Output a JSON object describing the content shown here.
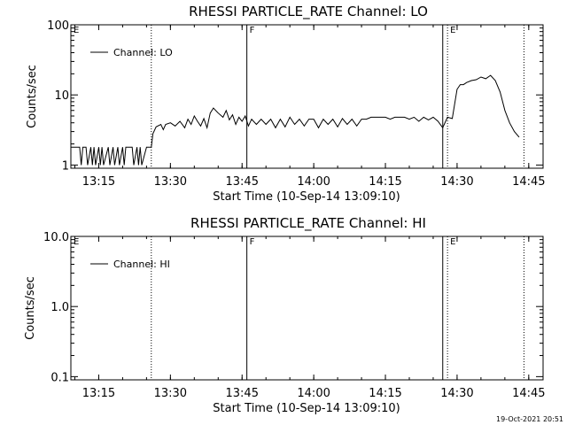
{
  "footer": {
    "timestamp": "19-Oct-2021 20:51"
  },
  "chart_data": [
    {
      "type": "line",
      "title": "RHESSI PARTICLE_RATE Channel: LO",
      "xlabel": "Start Time (10-Sep-14 13:09:10)",
      "ylabel": "Counts/sec",
      "yscale": "log",
      "ylim": [
        0.9,
        100
      ],
      "xlim": [
        "13:09:10",
        "14:48:00"
      ],
      "x_ticks": [
        "13:15",
        "13:30",
        "13:45",
        "14:00",
        "14:15",
        "14:30",
        "14:45"
      ],
      "y_ticks": [
        {
          "value": 1,
          "label": "1"
        },
        {
          "value": 10,
          "label": "10"
        },
        {
          "value": 100,
          "label": "100"
        }
      ],
      "legend": {
        "position": "top-left",
        "entries": [
          "Channel: LO"
        ]
      },
      "markers": [
        {
          "label": "E",
          "time": "13:09:10",
          "style": "solid"
        },
        {
          "label": "",
          "time": "13:26:00",
          "style": "dotted"
        },
        {
          "label": "F",
          "time": "13:46:00",
          "style": "solid"
        },
        {
          "label": "",
          "time": "14:27:00",
          "style": "solid"
        },
        {
          "label": "E",
          "time": "14:28:00",
          "style": "dotted"
        },
        {
          "label": "",
          "time": "14:44:00",
          "style": "dotted"
        }
      ],
      "series": [
        {
          "name": "Channel: LO",
          "x": [
            "13:09:10",
            "13:10:00",
            "13:11:00",
            "13:11:20",
            "13:11:40",
            "13:12:20",
            "13:12:40",
            "13:13:20",
            "13:13:40",
            "13:14:00",
            "13:14:20",
            "13:15:00",
            "13:15:20",
            "13:15:40",
            "13:16:00",
            "13:17:00",
            "13:17:20",
            "13:18:00",
            "13:18:20",
            "13:19:00",
            "13:19:20",
            "13:20:00",
            "13:20:20",
            "13:20:40",
            "13:21:00",
            "13:22:00",
            "13:22:20",
            "13:23:00",
            "13:23:20",
            "13:23:40",
            "13:24:00",
            "13:25:00",
            "13:25:20",
            "13:26:00",
            "13:26:20",
            "13:27:00",
            "13:28:00",
            "13:28:30",
            "13:29:00",
            "13:30:00",
            "13:31:00",
            "13:32:00",
            "13:33:00",
            "13:33:40",
            "13:34:20",
            "13:35:00",
            "13:35:40",
            "13:36:20",
            "13:37:00",
            "13:37:40",
            "13:38:20",
            "13:39:00",
            "13:40:00",
            "13:41:00",
            "13:41:40",
            "13:42:20",
            "13:43:00",
            "13:43:40",
            "13:44:20",
            "13:45:00",
            "13:45:40",
            "13:46:20",
            "13:47:00",
            "13:48:00",
            "13:49:00",
            "13:50:00",
            "13:51:00",
            "13:52:00",
            "13:53:00",
            "13:54:00",
            "13:55:00",
            "13:56:00",
            "13:57:00",
            "13:58:00",
            "13:59:00",
            "14:00:00",
            "14:01:00",
            "14:02:00",
            "14:03:00",
            "14:04:00",
            "14:05:00",
            "14:06:00",
            "14:07:00",
            "14:08:00",
            "14:09:00",
            "14:10:00",
            "14:11:00",
            "14:12:00",
            "14:13:00",
            "14:14:00",
            "14:15:00",
            "14:16:00",
            "14:17:00",
            "14:18:00",
            "14:19:00",
            "14:20:00",
            "14:21:00",
            "14:22:00",
            "14:23:00",
            "14:24:00",
            "14:25:00",
            "14:26:00",
            "14:27:00",
            "14:28:00",
            "14:29:00",
            "14:30:00",
            "14:30:40",
            "14:31:20",
            "14:32:00",
            "14:33:00",
            "14:34:00",
            "14:35:00",
            "14:36:00",
            "14:37:00",
            "14:38:00",
            "14:39:00",
            "14:40:00",
            "14:41:00",
            "14:42:00",
            "14:43:00"
          ],
          "y": [
            1.8,
            1.8,
            1.8,
            1,
            1.8,
            1.8,
            1,
            1.8,
            1,
            1.8,
            1,
            1.8,
            1,
            1.8,
            1,
            1.8,
            1,
            1.8,
            1,
            1.8,
            1,
            1.8,
            1,
            1.8,
            1.8,
            1.8,
            1,
            1.8,
            1,
            1.8,
            1,
            1.8,
            1.8,
            1.8,
            2.8,
            3.5,
            3.8,
            3.2,
            3.8,
            4,
            3.6,
            4.2,
            3.4,
            4.5,
            3.8,
            5,
            4.2,
            3.6,
            4.6,
            3.4,
            5.5,
            6.5,
            5.5,
            4.8,
            6,
            4.4,
            5.2,
            3.8,
            4.8,
            4.2,
            5,
            3.6,
            4.5,
            3.8,
            4.5,
            3.8,
            4.5,
            3.4,
            4.5,
            3.5,
            4.8,
            3.8,
            4.5,
            3.6,
            4.5,
            4.5,
            3.4,
            4.5,
            3.8,
            4.5,
            3.5,
            4.6,
            3.8,
            4.5,
            3.6,
            4.5,
            4.5,
            4.8,
            4.8,
            4.8,
            4.8,
            4.5,
            4.8,
            4.8,
            4.8,
            4.5,
            4.8,
            4.2,
            4.8,
            4.4,
            4.8,
            4.2,
            3.4,
            4.8,
            4.6,
            12,
            14,
            14,
            15,
            16,
            16.5,
            18,
            17,
            19,
            16,
            11,
            6,
            4,
            3,
            2.5
          ]
        }
      ]
    },
    {
      "type": "line",
      "title": "RHESSI PARTICLE_RATE Channel: HI",
      "xlabel": "Start Time (10-Sep-14 13:09:10)",
      "ylabel": "Counts/sec",
      "yscale": "log",
      "ylim": [
        0.09,
        10
      ],
      "xlim": [
        "13:09:10",
        "14:48:00"
      ],
      "x_ticks": [
        "13:15",
        "13:30",
        "13:45",
        "14:00",
        "14:15",
        "14:30",
        "14:45"
      ],
      "y_ticks": [
        {
          "value": 0.1,
          "label": "0.1"
        },
        {
          "value": 1,
          "label": "1.0"
        },
        {
          "value": 10,
          "label": "10.0"
        }
      ],
      "legend": {
        "position": "top-left",
        "entries": [
          "Channel: HI"
        ]
      },
      "markers": [
        {
          "label": "E",
          "time": "13:09:10",
          "style": "solid"
        },
        {
          "label": "",
          "time": "13:26:00",
          "style": "dotted"
        },
        {
          "label": "F",
          "time": "13:46:00",
          "style": "solid"
        },
        {
          "label": "",
          "time": "14:27:00",
          "style": "solid"
        },
        {
          "label": "E",
          "time": "14:28:00",
          "style": "dotted"
        },
        {
          "label": "",
          "time": "14:44:00",
          "style": "dotted"
        }
      ],
      "series": [
        {
          "name": "Channel: HI",
          "x": [],
          "y": []
        }
      ]
    }
  ]
}
